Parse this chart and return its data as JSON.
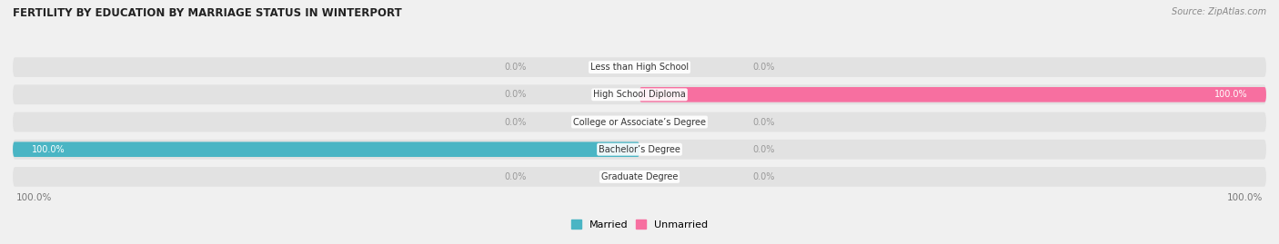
{
  "title": "FERTILITY BY EDUCATION BY MARRIAGE STATUS IN WINTERPORT",
  "source": "Source: ZipAtlas.com",
  "categories": [
    "Less than High School",
    "High School Diploma",
    "College or Associate’s Degree",
    "Bachelor’s Degree",
    "Graduate Degree"
  ],
  "married": [
    0.0,
    0.0,
    0.0,
    100.0,
    0.0
  ],
  "unmarried": [
    0.0,
    100.0,
    0.0,
    0.0,
    0.0
  ],
  "married_color": "#4ab5c4",
  "unmarried_color": "#f76fa0",
  "bg_color": "#f0f0f0",
  "bar_bg_color": "#e2e2e2",
  "row_bg_color": "#e8e8e8",
  "title_color": "#222222",
  "label_color": "#777777",
  "value_color_inside": "#ffffff",
  "value_color_outside": "#999999",
  "xlim": 100,
  "legend_married": "Married",
  "legend_unmarried": "Unmarried"
}
